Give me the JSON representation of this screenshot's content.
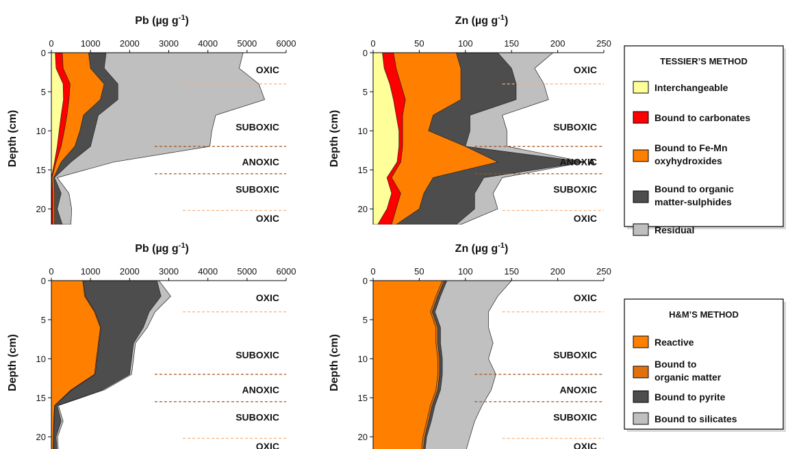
{
  "colors": {
    "interchangeable": "#ffff99",
    "carbonates": "#ff0000",
    "fe_mn": "#ff8000",
    "organic_sulphides": "#4d4d4d",
    "residual": "#bfbfbf",
    "hm_reactive": "#ff8000",
    "hm_organic": "#e07010",
    "hm_pyrite": "#4d4d4d",
    "hm_silicates": "#c0c0c0",
    "zone_line_oxic": "#f5b07a",
    "zone_line_anoxic": "#a0521b"
  },
  "chart_data": [
    {
      "id": "pb-tessier",
      "type": "area",
      "title": "Pb (µg g",
      "title_sup": "-1",
      "title_end": ")",
      "ylabel": "Depth (cm)",
      "xlim": [
        0,
        6000
      ],
      "xticks": [
        "0",
        "1000",
        "2000",
        "3000",
        "4000",
        "5000",
        "6000"
      ],
      "ylim": [
        0,
        22
      ],
      "yticks": [
        "0",
        "5",
        "10",
        "15",
        "20"
      ],
      "depths": [
        0,
        2,
        4,
        6,
        8,
        10,
        12,
        14,
        16,
        18,
        20,
        22
      ],
      "series": [
        {
          "key": "interchangeable",
          "cumulative": [
            100,
            120,
            300,
            310,
            250,
            200,
            150,
            80,
            0,
            10,
            10,
            10
          ]
        },
        {
          "key": "carbonates",
          "cumulative": [
            280,
            300,
            480,
            450,
            400,
            330,
            250,
            120,
            20,
            40,
            40,
            40
          ]
        },
        {
          "key": "fe_mn",
          "cumulative": [
            950,
            1000,
            1350,
            1250,
            820,
            730,
            600,
            250,
            60,
            80,
            80,
            80
          ]
        },
        {
          "key": "organic_sulphides",
          "cumulative": [
            1400,
            1350,
            1700,
            1700,
            1200,
            1100,
            1000,
            500,
            80,
            250,
            150,
            280
          ]
        },
        {
          "key": "residual",
          "cumulative": [
            4900,
            4800,
            5300,
            5450,
            4200,
            4100,
            4050,
            1600,
            150,
            450,
            520,
            500
          ]
        }
      ],
      "zones": [
        {
          "label": "OXIC",
          "depth": 2.2
        },
        {
          "label": "SUBOXIC",
          "depth": 9.5
        },
        {
          "label": "ANOXIC",
          "depth": 14.0
        },
        {
          "label": "SUBOXIC",
          "depth": 17.5
        },
        {
          "label": "OXIC",
          "depth": 21.2
        }
      ],
      "boundaries": [
        {
          "depth": 4.0,
          "kind": "oxic"
        },
        {
          "depth": 12.0,
          "kind": "anoxic"
        },
        {
          "depth": 15.5,
          "kind": "anoxic"
        },
        {
          "depth": 20.2,
          "kind": "oxic"
        }
      ]
    },
    {
      "id": "zn-tessier",
      "type": "area",
      "title": "Zn (µg g",
      "title_sup": "-1",
      "title_end": ")",
      "ylabel": "Depth (cm)",
      "xlim": [
        0,
        250
      ],
      "xticks": [
        "0",
        "50",
        "100",
        "150",
        "200",
        "250"
      ],
      "ylim": [
        0,
        22
      ],
      "yticks": [
        "0",
        "5",
        "10",
        "15",
        "20"
      ],
      "depths": [
        0,
        2,
        4,
        6,
        8,
        10,
        12,
        14,
        16,
        18,
        20,
        22
      ],
      "series": [
        {
          "key": "interchangeable",
          "cumulative": [
            10,
            12,
            18,
            22,
            25,
            28,
            28,
            26,
            15,
            20,
            15,
            5
          ]
        },
        {
          "key": "carbonates",
          "cumulative": [
            22,
            25,
            30,
            35,
            32,
            32,
            32,
            30,
            20,
            30,
            25,
            20
          ]
        },
        {
          "key": "fe_mn",
          "cumulative": [
            90,
            95,
            95,
            95,
            65,
            60,
            100,
            135,
            65,
            55,
            50,
            25
          ]
        },
        {
          "key": "organic_sulphides",
          "cumulative": [
            135,
            150,
            155,
            155,
            105,
            105,
            100,
            230,
            120,
            110,
            110,
            90
          ]
        },
        {
          "key": "residual",
          "cumulative": [
            195,
            175,
            185,
            190,
            140,
            145,
            145,
            230,
            140,
            130,
            135,
            95
          ]
        }
      ],
      "annotations": [
        {
          "text": "A",
          "x": 233,
          "depth": 14.0
        }
      ],
      "zones": [
        {
          "label": "OXIC",
          "depth": 2.2
        },
        {
          "label": "SUBOXIC",
          "depth": 9.5
        },
        {
          "label": "ANOXIC",
          "depth": 14.0
        },
        {
          "label": "SUBOXIC",
          "depth": 17.5
        },
        {
          "label": "OXIC",
          "depth": 21.2
        }
      ],
      "boundaries": [
        {
          "depth": 4.0,
          "kind": "oxic"
        },
        {
          "depth": 12.0,
          "kind": "anoxic"
        },
        {
          "depth": 15.5,
          "kind": "anoxic"
        },
        {
          "depth": 20.2,
          "kind": "oxic"
        }
      ]
    },
    {
      "id": "pb-hm",
      "type": "area",
      "title": "Pb (µg g",
      "title_sup": "-1",
      "title_end": ")",
      "ylabel": "Depth (cm)",
      "xlim": [
        0,
        6000
      ],
      "xticks": [
        "0",
        "1000",
        "2000",
        "3000",
        "4000",
        "5000",
        "6000"
      ],
      "ylim": [
        0,
        22
      ],
      "yticks": [
        "0",
        "5",
        "10",
        "15",
        "20"
      ],
      "depths": [
        0,
        2,
        4,
        6,
        8,
        10,
        12,
        14,
        16,
        18,
        20,
        22
      ],
      "series": [
        {
          "key": "hm_reactive",
          "cumulative": [
            800,
            850,
            1100,
            1250,
            1200,
            1150,
            1100,
            500,
            80,
            60,
            50,
            40
          ]
        },
        {
          "key": "hm_organic",
          "cumulative": [
            820,
            870,
            1120,
            1270,
            1220,
            1170,
            1120,
            520,
            90,
            70,
            60,
            50
          ]
        },
        {
          "key": "hm_pyrite",
          "cumulative": [
            2700,
            2800,
            2500,
            2350,
            2100,
            2050,
            2000,
            1300,
            150,
            250,
            120,
            150
          ]
        },
        {
          "key": "hm_silicates",
          "cumulative": [
            2750,
            3050,
            2650,
            2450,
            2150,
            2100,
            2050,
            1350,
            180,
            300,
            160,
            180
          ]
        }
      ],
      "zones": [
        {
          "label": "OXIC",
          "depth": 2.2
        },
        {
          "label": "SUBOXIC",
          "depth": 9.5
        },
        {
          "label": "ANOXIC",
          "depth": 14.0
        },
        {
          "label": "SUBOXIC",
          "depth": 17.5
        },
        {
          "label": "OXIC",
          "depth": 21.2
        }
      ],
      "boundaries": [
        {
          "depth": 4.0,
          "kind": "oxic"
        },
        {
          "depth": 12.0,
          "kind": "anoxic"
        },
        {
          "depth": 15.5,
          "kind": "anoxic"
        },
        {
          "depth": 20.2,
          "kind": "oxic"
        }
      ]
    },
    {
      "id": "zn-hm",
      "type": "area",
      "title": "Zn (µg g",
      "title_sup": "-1",
      "title_end": ")",
      "ylabel": "Depth (cm)",
      "xlim": [
        0,
        250
      ],
      "xticks": [
        "0",
        "50",
        "100",
        "150",
        "200",
        "250"
      ],
      "ylim": [
        0,
        22
      ],
      "yticks": [
        "0",
        "5",
        "10",
        "15",
        "20"
      ],
      "depths": [
        0,
        2,
        4,
        6,
        8,
        10,
        12,
        14,
        16,
        18,
        20,
        22
      ],
      "series": [
        {
          "key": "hm_reactive",
          "cumulative": [
            75,
            68,
            62,
            68,
            68,
            70,
            70,
            68,
            62,
            58,
            54,
            52
          ]
        },
        {
          "key": "hm_organic",
          "cumulative": [
            77,
            70,
            64,
            70,
            70,
            72,
            72,
            70,
            64,
            60,
            56,
            54
          ]
        },
        {
          "key": "hm_pyrite",
          "cumulative": [
            80,
            73,
            67,
            73,
            73,
            75,
            75,
            73,
            67,
            63,
            58,
            56
          ]
        },
        {
          "key": "hm_silicates",
          "cumulative": [
            150,
            135,
            125,
            125,
            130,
            125,
            133,
            128,
            118,
            110,
            105,
            100
          ]
        }
      ],
      "zones": [
        {
          "label": "OXIC",
          "depth": 2.2
        },
        {
          "label": "SUBOXIC",
          "depth": 9.5
        },
        {
          "label": "ANOXIC",
          "depth": 14.0
        },
        {
          "label": "SUBOXIC",
          "depth": 17.5
        },
        {
          "label": "OXIC",
          "depth": 21.2
        }
      ],
      "boundaries": [
        {
          "depth": 4.0,
          "kind": "oxic"
        },
        {
          "depth": 12.0,
          "kind": "anoxic"
        },
        {
          "depth": 15.5,
          "kind": "anoxic"
        },
        {
          "depth": 20.2,
          "kind": "oxic"
        }
      ]
    }
  ],
  "legends": [
    {
      "id": "legend-tessier",
      "title": "TESSIER’S METHOD",
      "items": [
        {
          "key": "interchangeable",
          "lines": [
            "Interchangeable"
          ]
        },
        {
          "key": "carbonates",
          "lines": [
            "Bound to carbonates"
          ]
        },
        {
          "key": "fe_mn",
          "lines": [
            "Bound to Fe-Mn",
            "oxyhydroxides"
          ]
        },
        {
          "key": "organic_sulphides",
          "lines": [
            "Bound to organic",
            "matter-sulphides"
          ]
        },
        {
          "key": "residual",
          "lines": [
            "Residual"
          ]
        }
      ]
    },
    {
      "id": "legend-hm",
      "title": "H&M’S METHOD",
      "items": [
        {
          "key": "hm_reactive",
          "lines": [
            "Reactive"
          ]
        },
        {
          "key": "hm_organic",
          "lines": [
            "Bound to",
            "organic matter"
          ]
        },
        {
          "key": "hm_pyrite",
          "lines": [
            "Bound to pyrite"
          ]
        },
        {
          "key": "hm_silicates",
          "lines": [
            "Bound to silicates"
          ]
        }
      ]
    }
  ]
}
